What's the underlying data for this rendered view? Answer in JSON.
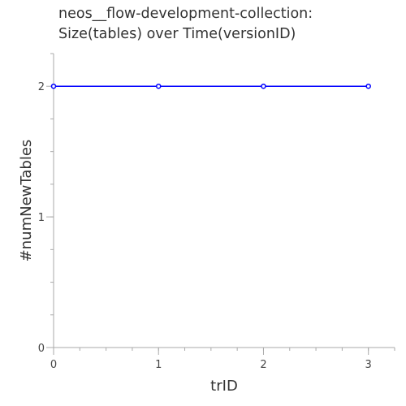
{
  "chart_data": {
    "type": "line",
    "title_lines": [
      "neos__flow-development-collection:",
      "Size(tables) over Time(versionID)"
    ],
    "xlabel": "trID",
    "ylabel": "#numNewTables",
    "x": [
      0,
      1,
      2,
      3
    ],
    "series": [
      {
        "values": [
          2,
          2,
          2,
          2
        ],
        "color": "#0000ff"
      }
    ],
    "xlim": [
      0,
      3.25
    ],
    "ylim": [
      0,
      2.25
    ],
    "xticks": [
      0,
      1,
      2,
      3
    ],
    "yticks": [
      0,
      1,
      2
    ],
    "x_minor_step": 0.25,
    "y_minor_step": 0.25,
    "grid": false,
    "axis_color": "#aaaaaa"
  }
}
